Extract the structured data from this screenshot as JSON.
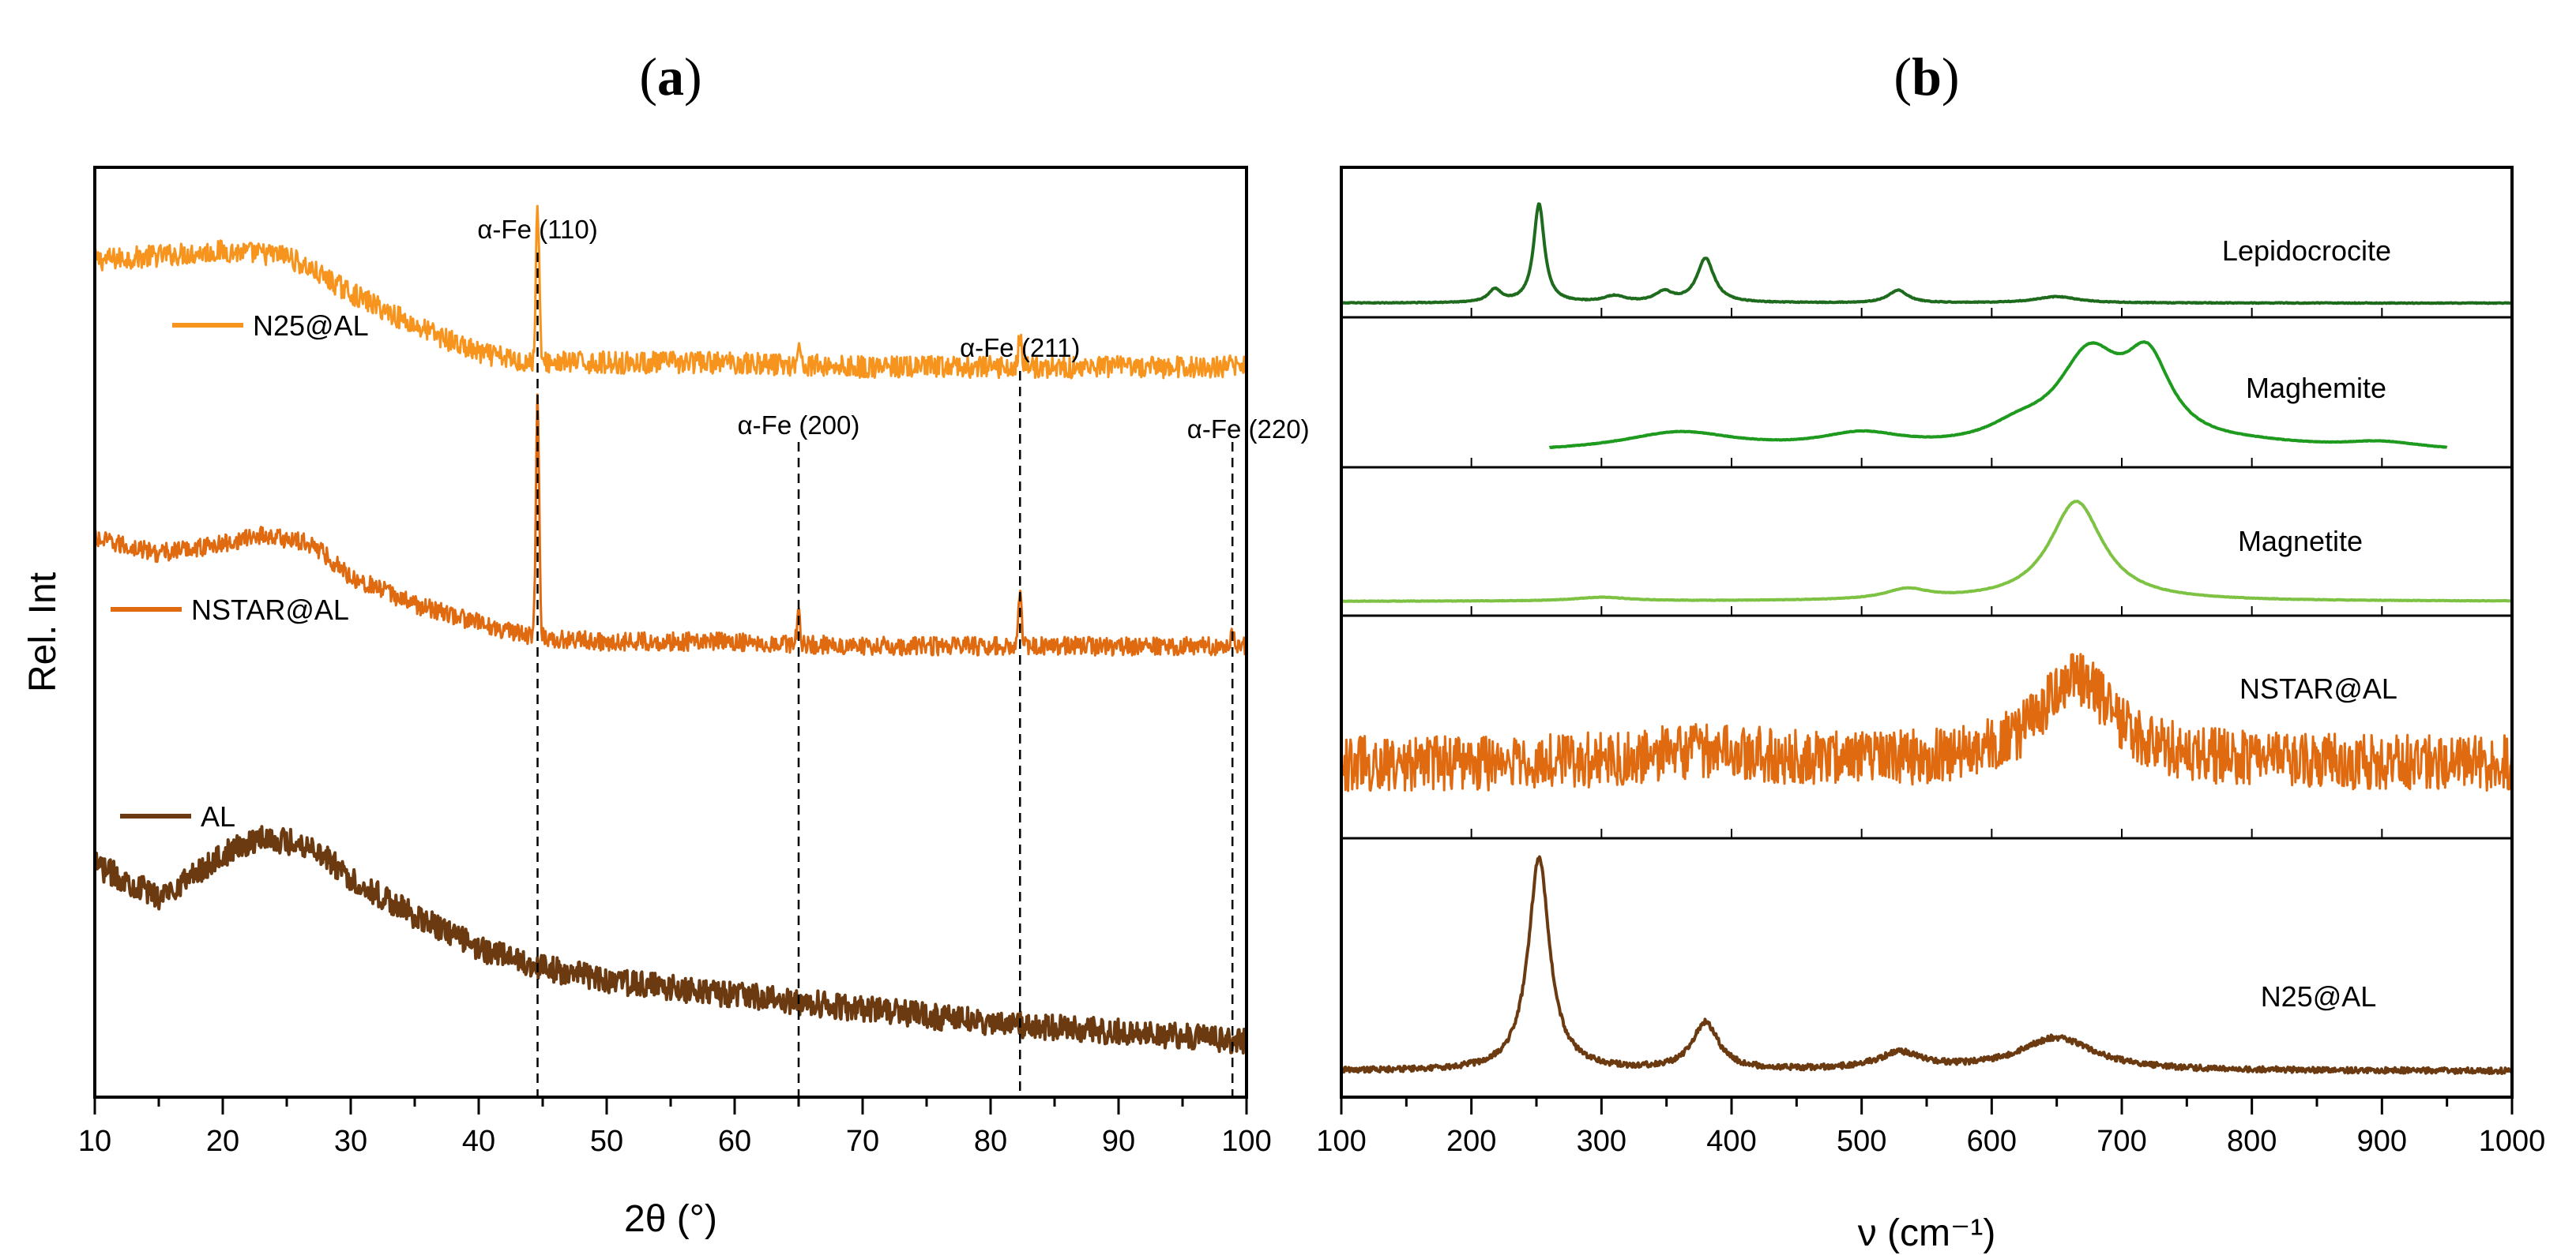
{
  "chart_data": [
    {
      "type": "line",
      "panel_label": "a",
      "title": "(a)",
      "xlabel": "2θ (°)",
      "ylabel": "Rel. Int",
      "xlim": [
        10,
        100
      ],
      "x_ticks": [
        10,
        20,
        30,
        40,
        50,
        60,
        70,
        80,
        90,
        100
      ],
      "reference_lines": [
        {
          "label": "α-Fe (110)",
          "x": 44.6
        },
        {
          "label": "α-Fe (200)",
          "x": 65.0
        },
        {
          "label": "α-Fe (211)",
          "x": 82.3
        },
        {
          "label": "α-Fe (220)",
          "x": 98.9
        }
      ],
      "series": [
        {
          "name": "N25@AL",
          "color": "#F7941D",
          "baseline": [
            [
              10,
              0.9
            ],
            [
              15,
              0.905
            ],
            [
              20,
              0.91
            ],
            [
              25,
              0.905
            ],
            [
              30,
              0.865
            ],
            [
              35,
              0.83
            ],
            [
              40,
              0.8
            ],
            [
              44,
              0.79
            ],
            [
              50,
              0.79
            ],
            [
              60,
              0.79
            ],
            [
              70,
              0.785
            ],
            [
              80,
              0.785
            ],
            [
              90,
              0.785
            ],
            [
              100,
              0.785
            ]
          ],
          "peaks": [
            {
              "x": 44.6,
              "h": 0.17
            },
            {
              "x": 65.0,
              "h": 0.02
            },
            {
              "x": 82.3,
              "h": 0.035
            },
            {
              "x": 98.9,
              "h": 0.01
            }
          ],
          "noise": 0.012
        },
        {
          "name": "NSTAR@AL",
          "color": "#E06A10",
          "baseline": [
            [
              10,
              0.6
            ],
            [
              15,
              0.585
            ],
            [
              20,
              0.595
            ],
            [
              23,
              0.605
            ],
            [
              27,
              0.595
            ],
            [
              30,
              0.56
            ],
            [
              35,
              0.53
            ],
            [
              40,
              0.51
            ],
            [
              44,
              0.495
            ],
            [
              50,
              0.49
            ],
            [
              60,
              0.49
            ],
            [
              70,
              0.485
            ],
            [
              80,
              0.485
            ],
            [
              90,
              0.485
            ],
            [
              100,
              0.485
            ]
          ],
          "peaks": [
            {
              "x": 44.6,
              "h": 0.26
            },
            {
              "x": 65.0,
              "h": 0.03
            },
            {
              "x": 82.3,
              "h": 0.06
            },
            {
              "x": 98.9,
              "h": 0.015
            }
          ],
          "noise": 0.01
        },
        {
          "name": "AL",
          "color": "#6B3A10",
          "baseline": [
            [
              10,
              0.25
            ],
            [
              15,
              0.215
            ],
            [
              20,
              0.26
            ],
            [
              23,
              0.28
            ],
            [
              27,
              0.27
            ],
            [
              30,
              0.235
            ],
            [
              35,
              0.195
            ],
            [
              40,
              0.16
            ],
            [
              45,
              0.14
            ],
            [
              50,
              0.125
            ],
            [
              60,
              0.11
            ],
            [
              70,
              0.095
            ],
            [
              80,
              0.08
            ],
            [
              90,
              0.07
            ],
            [
              100,
              0.06
            ]
          ],
          "peaks": [],
          "noise": 0.014
        }
      ]
    },
    {
      "type": "line",
      "panel_label": "b",
      "title": "(b)",
      "xlabel": "ν (cm⁻¹)",
      "ylabel": "",
      "xlim": [
        100,
        1000
      ],
      "x_ticks": [
        100,
        200,
        300,
        400,
        500,
        600,
        700,
        800,
        900,
        1000
      ],
      "series": [
        {
          "name": "Lepidocrocite",
          "color": "#1E6B1E",
          "x_range": [
            100,
            1000
          ],
          "noise": 0.003,
          "baseline": 0.0,
          "peaks": [
            {
              "x": 218,
              "h": 0.1,
              "w": 6
            },
            {
              "x": 252,
              "h": 0.78,
              "w": 5
            },
            {
              "x": 310,
              "h": 0.05,
              "w": 10
            },
            {
              "x": 348,
              "h": 0.08,
              "w": 8
            },
            {
              "x": 380,
              "h": 0.35,
              "w": 8
            },
            {
              "x": 528,
              "h": 0.1,
              "w": 9
            },
            {
              "x": 650,
              "h": 0.05,
              "w": 20
            }
          ]
        },
        {
          "name": "Maghemite",
          "color": "#1E9A1E",
          "x_range": [
            260,
            950
          ],
          "noise": 0.002,
          "baseline": 0.0,
          "peaks": [
            {
              "x": 360,
              "h": 0.15,
              "w": 55
            },
            {
              "x": 500,
              "h": 0.12,
              "w": 40
            },
            {
              "x": 620,
              "h": 0.12,
              "w": 30
            },
            {
              "x": 675,
              "h": 0.7,
              "w": 30
            },
            {
              "x": 720,
              "h": 0.62,
              "w": 22
            },
            {
              "x": 800,
              "h": 0.04,
              "w": 60
            },
            {
              "x": 900,
              "h": 0.06,
              "w": 40
            }
          ]
        },
        {
          "name": "Magnetite",
          "color": "#7DC242",
          "x_range": [
            100,
            1000
          ],
          "noise": 0.002,
          "baseline": 0.0,
          "peaks": [
            {
              "x": 300,
              "h": 0.03,
              "w": 25
            },
            {
              "x": 535,
              "h": 0.08,
              "w": 20
            },
            {
              "x": 665,
              "h": 0.8,
              "w": 25
            }
          ]
        },
        {
          "name": "NSTAR@AL",
          "color": "#E06A10",
          "x_range": [
            100,
            1000
          ],
          "noise": 0.14,
          "baseline": 0.3,
          "peaks": [
            {
              "x": 665,
              "h": 0.42,
              "w": 35
            },
            {
              "x": 380,
              "h": 0.06,
              "w": 60
            }
          ]
        },
        {
          "name": "N25@AL",
          "color": "#6B3A10",
          "x_range": [
            100,
            1000
          ],
          "noise": 0.012,
          "baseline": 0.05,
          "peaks": [
            {
              "x": 252,
              "h": 0.9,
              "w": 10
            },
            {
              "x": 380,
              "h": 0.2,
              "w": 12
            },
            {
              "x": 530,
              "h": 0.07,
              "w": 22
            },
            {
              "x": 650,
              "h": 0.14,
              "w": 35
            }
          ]
        }
      ]
    }
  ]
}
